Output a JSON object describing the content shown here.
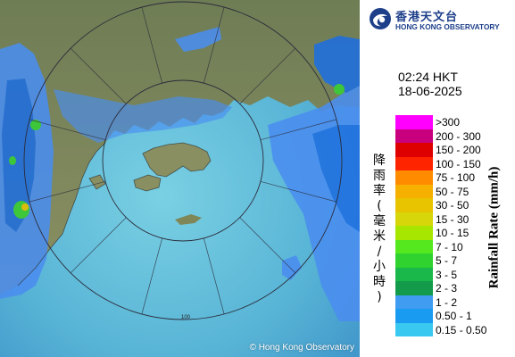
{
  "header": {
    "org_chinese": "香港天文台",
    "org_english": "HONG KONG OBSERVATORY"
  },
  "timestamp": {
    "time": "02:24 HKT",
    "date": "18-06-2025"
  },
  "axis_titles": {
    "chinese": "降雨率(毫米/小時)",
    "english": "Rainfall Rate (mm/h)"
  },
  "legend": [
    {
      "label": ">300",
      "color": "#ff00ff"
    },
    {
      "label": "200 - 300",
      "color": "#c8007d"
    },
    {
      "label": "150 - 200",
      "color": "#de0000"
    },
    {
      "label": "100 - 150",
      "color": "#ff2400"
    },
    {
      "label": "75 - 100",
      "color": "#ff8c00"
    },
    {
      "label": "50 - 75",
      "color": "#f5b000"
    },
    {
      "label": "30 - 50",
      "color": "#e8c300"
    },
    {
      "label": "15 - 30",
      "color": "#d6d60a"
    },
    {
      "label": "10 - 15",
      "color": "#a6e600"
    },
    {
      "label": "7 - 10",
      "color": "#55e81e"
    },
    {
      "label": "5 - 7",
      "color": "#2fd22f"
    },
    {
      "label": "3 - 5",
      "color": "#1ab84a"
    },
    {
      "label": "2 - 3",
      "color": "#139a4a"
    },
    {
      "label": "1 - 2",
      "color": "#3f9cf0"
    },
    {
      "label": "0.50 - 1",
      "color": "#1a9bf2"
    },
    {
      "label": "0.15 - 0.50",
      "color": "#38c8f0"
    }
  ],
  "map": {
    "range_label": "100",
    "copyright": "© Hong Kong Observatory",
    "colors": {
      "sea": "#5fb6d2",
      "land": "#7d8a5e",
      "rain_light": "#4a8ef0",
      "rain_mid": "#1f6fe0",
      "rain_green": "#36d036"
    }
  }
}
